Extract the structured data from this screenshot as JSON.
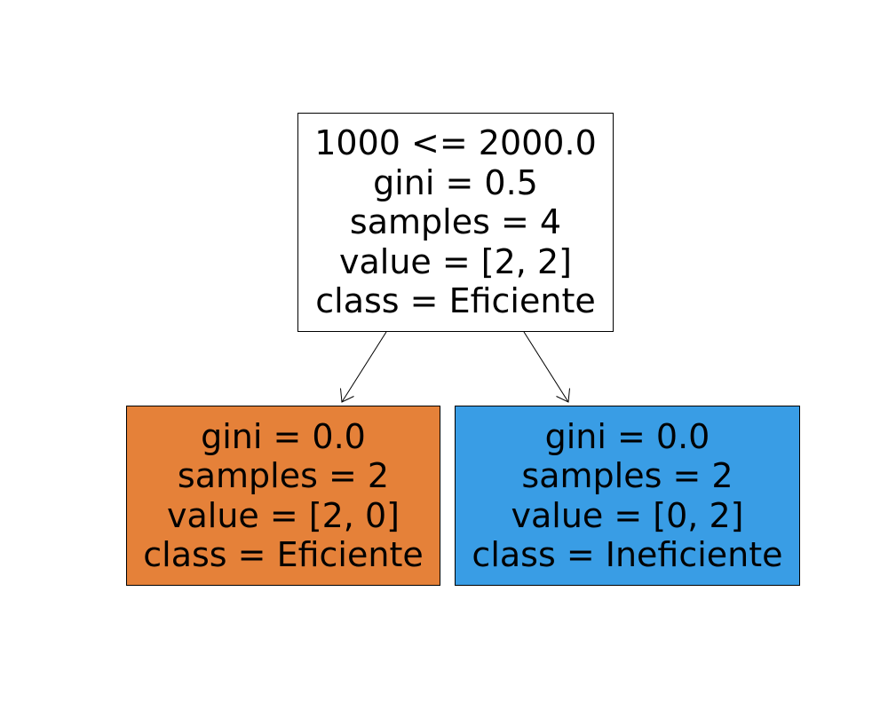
{
  "tree": {
    "root": {
      "split": "1000 <= 2000.0",
      "gini": "gini = 0.5",
      "samples": "samples = 4",
      "value": "value = [2, 2]",
      "class": "class = Eficiente",
      "fill": "#ffffff"
    },
    "left": {
      "gini": "gini = 0.0",
      "samples": "samples = 2",
      "value": "value = [2, 0]",
      "class": "class = Eficiente",
      "fill": "#e58139"
    },
    "right": {
      "gini": "gini = 0.0",
      "samples": "samples = 2",
      "value": "value = [0, 2]",
      "class": "class = Ineficiente",
      "fill": "#399de5"
    }
  },
  "colors": {
    "edge": "#000000",
    "border": "#000000"
  }
}
